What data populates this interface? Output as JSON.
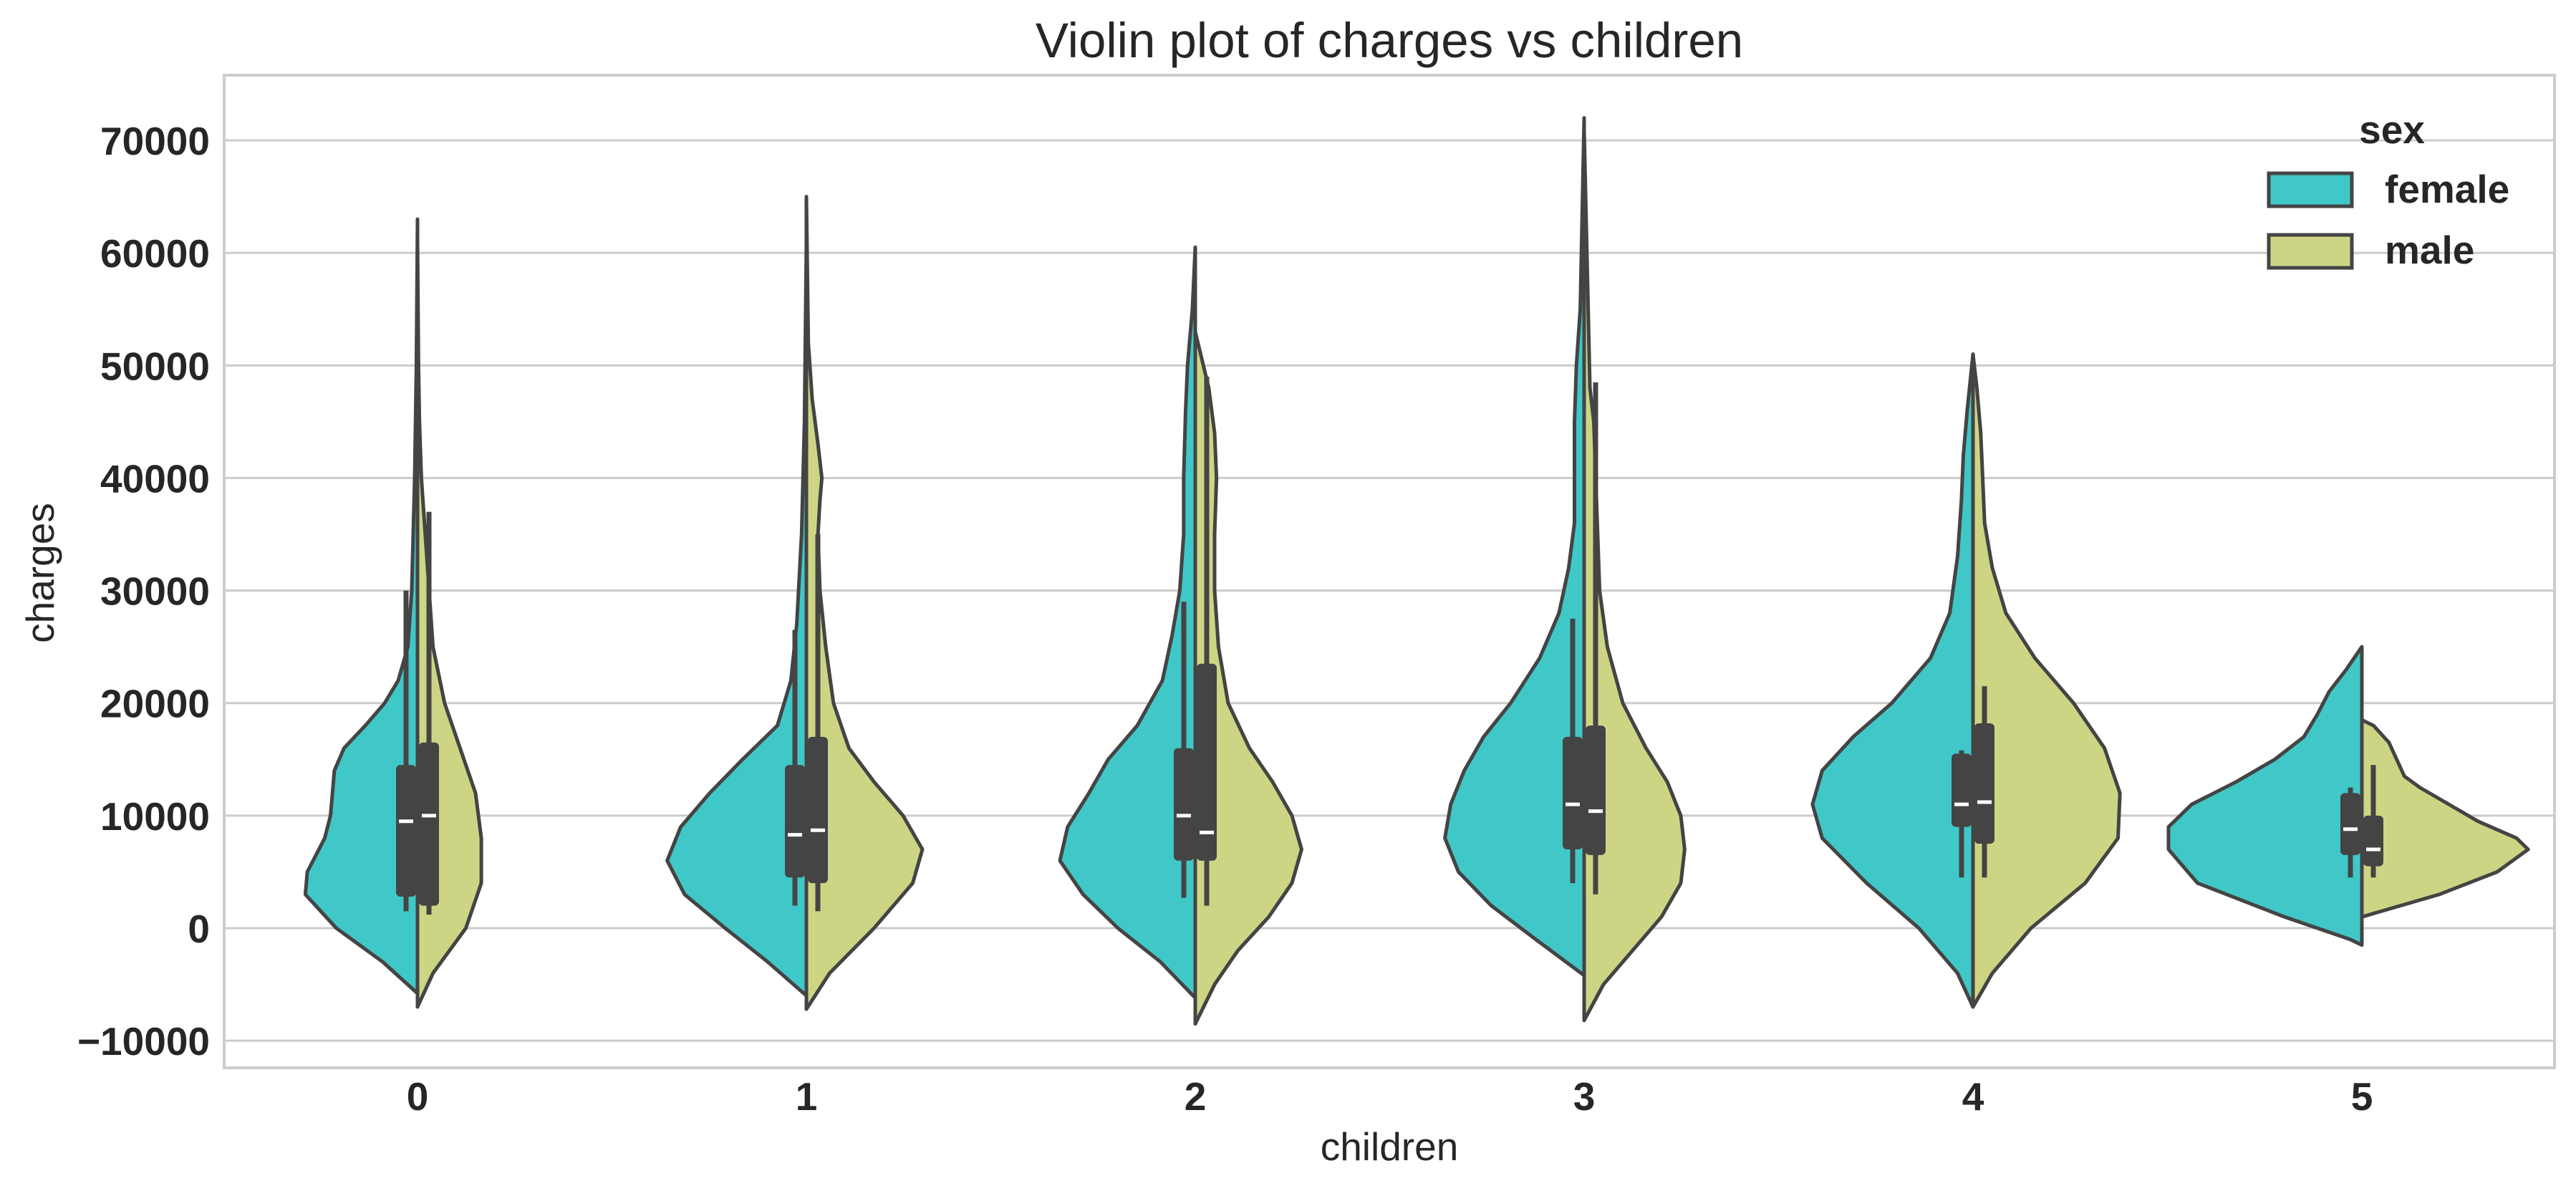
{
  "chart_data": {
    "type": "violin",
    "title": "Violin plot of charges vs children",
    "xlabel": "children",
    "ylabel": "charges",
    "categories": [
      "0",
      "1",
      "2",
      "3",
      "4",
      "5"
    ],
    "ylim": [
      -12500,
      76000
    ],
    "yticks": [
      -10000,
      0,
      10000,
      20000,
      30000,
      40000,
      50000,
      60000,
      70000
    ],
    "ytick_labels": [
      "−10000",
      "0",
      "10000",
      "20000",
      "30000",
      "40000",
      "50000",
      "60000",
      "70000"
    ],
    "grid": "horizontal",
    "split": true,
    "legend": {
      "title": "sex",
      "position": "top-right",
      "entries": [
        {
          "name": "female",
          "color": "#40c8c8"
        },
        {
          "name": "male",
          "color": "#cdd585"
        }
      ]
    },
    "series": [
      {
        "name": "female",
        "color": "#40c8c8",
        "violins": [
          {
            "category": "0",
            "min": -5800,
            "max": 63000,
            "q1": 2800,
            "median": 9500,
            "q3": 14500,
            "whisker_low": 1500,
            "whisker_high": 30000,
            "profile": [
              [
                -5800,
                0.0
              ],
              [
                -3000,
                0.18
              ],
              [
                0,
                0.42
              ],
              [
                3000,
                0.58
              ],
              [
                5000,
                0.57
              ],
              [
                8000,
                0.48
              ],
              [
                10000,
                0.45
              ],
              [
                12000,
                0.44
              ],
              [
                14000,
                0.43
              ],
              [
                16000,
                0.38
              ],
              [
                18000,
                0.27
              ],
              [
                20000,
                0.17
              ],
              [
                22000,
                0.1
              ],
              [
                25000,
                0.05
              ],
              [
                30000,
                0.03
              ],
              [
                40000,
                0.015
              ],
              [
                50000,
                0.006
              ],
              [
                63000,
                0.0
              ]
            ]
          },
          {
            "category": "1",
            "min": -6000,
            "max": 61000,
            "q1": 4500,
            "median": 8300,
            "q3": 14500,
            "whisker_low": 2000,
            "whisker_high": 26500,
            "profile": [
              [
                -6000,
                0.0
              ],
              [
                -3000,
                0.2
              ],
              [
                0,
                0.42
              ],
              [
                3000,
                0.63
              ],
              [
                6000,
                0.72
              ],
              [
                9000,
                0.65
              ],
              [
                12000,
                0.5
              ],
              [
                15000,
                0.33
              ],
              [
                18000,
                0.15
              ],
              [
                22000,
                0.08
              ],
              [
                27000,
                0.05
              ],
              [
                35000,
                0.025
              ],
              [
                45000,
                0.01
              ],
              [
                61000,
                0.0
              ]
            ]
          },
          {
            "category": "2",
            "min": -6200,
            "max": 60500,
            "q1": 6000,
            "median": 10000,
            "q3": 16000,
            "whisker_low": 2700,
            "whisker_high": 29000,
            "profile": [
              [
                -6200,
                0.0
              ],
              [
                -3000,
                0.18
              ],
              [
                0,
                0.4
              ],
              [
                3000,
                0.58
              ],
              [
                6000,
                0.7
              ],
              [
                9000,
                0.66
              ],
              [
                12000,
                0.55
              ],
              [
                15000,
                0.45
              ],
              [
                18000,
                0.3
              ],
              [
                22000,
                0.17
              ],
              [
                26000,
                0.12
              ],
              [
                30000,
                0.08
              ],
              [
                35000,
                0.06
              ],
              [
                40000,
                0.06
              ],
              [
                46000,
                0.05
              ],
              [
                50000,
                0.04
              ],
              [
                55000,
                0.015
              ],
              [
                60500,
                0.0
              ]
            ]
          },
          {
            "category": "3",
            "min": -4200,
            "max": 72000,
            "q1": 7000,
            "median": 11000,
            "q3": 17000,
            "whisker_low": 4000,
            "whisker_high": 27500,
            "profile": [
              [
                -4200,
                0.0
              ],
              [
                -1000,
                0.25
              ],
              [
                2000,
                0.48
              ],
              [
                5000,
                0.65
              ],
              [
                8000,
                0.72
              ],
              [
                11000,
                0.69
              ],
              [
                14000,
                0.62
              ],
              [
                17000,
                0.52
              ],
              [
                20000,
                0.38
              ],
              [
                24000,
                0.23
              ],
              [
                28000,
                0.13
              ],
              [
                32000,
                0.08
              ],
              [
                36000,
                0.05
              ],
              [
                40000,
                0.05
              ],
              [
                45000,
                0.05
              ],
              [
                50000,
                0.04
              ],
              [
                55000,
                0.02
              ],
              [
                72000,
                0.0
              ]
            ]
          },
          {
            "category": "4",
            "min": -7000,
            "max": 51000,
            "q1": 9000,
            "median": 11000,
            "q3": 15500,
            "whisker_low": 4500,
            "whisker_high": 15800,
            "profile": [
              [
                -7000,
                0.0
              ],
              [
                -4000,
                0.08
              ],
              [
                0,
                0.28
              ],
              [
                4000,
                0.55
              ],
              [
                8000,
                0.78
              ],
              [
                11000,
                0.83
              ],
              [
                14000,
                0.78
              ],
              [
                17000,
                0.62
              ],
              [
                20000,
                0.42
              ],
              [
                24000,
                0.22
              ],
              [
                28000,
                0.12
              ],
              [
                33000,
                0.08
              ],
              [
                38000,
                0.06
              ],
              [
                42000,
                0.05
              ],
              [
                46000,
                0.03
              ],
              [
                51000,
                0.0
              ]
            ]
          },
          {
            "category": "5",
            "min": -1500,
            "max": 25000,
            "q1": 6500,
            "median": 8800,
            "q3": 12000,
            "whisker_low": 4500,
            "whisker_high": 12500,
            "profile": [
              [
                -1500,
                0.0
              ],
              [
                -1000,
                0.06
              ],
              [
                1000,
                0.4
              ],
              [
                4000,
                0.85
              ],
              [
                7000,
                1.0
              ],
              [
                9000,
                1.0
              ],
              [
                11000,
                0.88
              ],
              [
                13000,
                0.65
              ],
              [
                15000,
                0.45
              ],
              [
                17000,
                0.3
              ],
              [
                19000,
                0.23
              ],
              [
                21000,
                0.17
              ],
              [
                23000,
                0.08
              ],
              [
                25000,
                0.0
              ]
            ]
          }
        ]
      },
      {
        "name": "male",
        "color": "#cdd585",
        "violins": [
          {
            "category": "0",
            "min": -7000,
            "max": 61000,
            "q1": 2000,
            "median": 10000,
            "q3": 16500,
            "whisker_low": 1200,
            "whisker_high": 37000,
            "profile": [
              [
                -7000,
                0.0
              ],
              [
                -4000,
                0.08
              ],
              [
                0,
                0.25
              ],
              [
                4000,
                0.33
              ],
              [
                8000,
                0.33
              ],
              [
                12000,
                0.3
              ],
              [
                16000,
                0.22
              ],
              [
                20000,
                0.14
              ],
              [
                25000,
                0.08
              ],
              [
                30000,
                0.06
              ],
              [
                35000,
                0.04
              ],
              [
                40000,
                0.02
              ],
              [
                45000,
                0.01
              ],
              [
                50000,
                0.005
              ],
              [
                61000,
                0.0
              ]
            ]
          },
          {
            "category": "1",
            "min": -7200,
            "max": 65000,
            "q1": 4000,
            "median": 8700,
            "q3": 17000,
            "whisker_low": 1500,
            "whisker_high": 35000,
            "profile": [
              [
                -7200,
                0.0
              ],
              [
                -4000,
                0.12
              ],
              [
                0,
                0.35
              ],
              [
                4000,
                0.55
              ],
              [
                7000,
                0.6
              ],
              [
                10000,
                0.5
              ],
              [
                13000,
                0.35
              ],
              [
                16000,
                0.22
              ],
              [
                20000,
                0.14
              ],
              [
                25000,
                0.1
              ],
              [
                30000,
                0.07
              ],
              [
                35000,
                0.06
              ],
              [
                38000,
                0.07
              ],
              [
                40000,
                0.08
              ],
              [
                43000,
                0.06
              ],
              [
                47000,
                0.03
              ],
              [
                52000,
                0.01
              ],
              [
                65000,
                0.0
              ]
            ]
          },
          {
            "category": "2",
            "min": -8500,
            "max": 53000,
            "q1": 6000,
            "median": 8500,
            "q3": 23500,
            "whisker_low": 2000,
            "whisker_high": 49000,
            "profile": [
              [
                -8500,
                0.0
              ],
              [
                -5000,
                0.1
              ],
              [
                -2000,
                0.22
              ],
              [
                1000,
                0.38
              ],
              [
                4000,
                0.5
              ],
              [
                7000,
                0.55
              ],
              [
                10000,
                0.5
              ],
              [
                13000,
                0.4
              ],
              [
                16000,
                0.28
              ],
              [
                20000,
                0.17
              ],
              [
                25000,
                0.12
              ],
              [
                30000,
                0.1
              ],
              [
                35000,
                0.1
              ],
              [
                40000,
                0.11
              ],
              [
                44000,
                0.1
              ],
              [
                48000,
                0.07
              ],
              [
                53000,
                0.0
              ]
            ]
          },
          {
            "category": "3",
            "min": -8200,
            "max": 71000,
            "q1": 6500,
            "median": 10400,
            "q3": 18000,
            "whisker_low": 3000,
            "whisker_high": 48500,
            "profile": [
              [
                -8200,
                0.0
              ],
              [
                -5000,
                0.1
              ],
              [
                -2000,
                0.25
              ],
              [
                1000,
                0.4
              ],
              [
                4000,
                0.5
              ],
              [
                7000,
                0.52
              ],
              [
                10000,
                0.5
              ],
              [
                13000,
                0.43
              ],
              [
                16000,
                0.32
              ],
              [
                20000,
                0.2
              ],
              [
                25000,
                0.12
              ],
              [
                30000,
                0.08
              ],
              [
                35000,
                0.07
              ],
              [
                40000,
                0.06
              ],
              [
                45000,
                0.05
              ],
              [
                48000,
                0.03
              ],
              [
                71000,
                0.0
              ]
            ]
          },
          {
            "category": "4",
            "min": -7000,
            "max": 51000,
            "q1": 7500,
            "median": 11200,
            "q3": 18200,
            "whisker_low": 4500,
            "whisker_high": 21500,
            "profile": [
              [
                -7000,
                0.0
              ],
              [
                -4000,
                0.1
              ],
              [
                0,
                0.3
              ],
              [
                4000,
                0.58
              ],
              [
                8000,
                0.75
              ],
              [
                12000,
                0.76
              ],
              [
                16000,
                0.68
              ],
              [
                20000,
                0.52
              ],
              [
                24000,
                0.32
              ],
              [
                28000,
                0.17
              ],
              [
                32000,
                0.1
              ],
              [
                36000,
                0.06
              ],
              [
                40000,
                0.05
              ],
              [
                44000,
                0.04
              ],
              [
                48000,
                0.02
              ],
              [
                51000,
                0.0
              ]
            ]
          },
          {
            "category": "5",
            "min": 1000,
            "max": 18500,
            "q1": 5500,
            "median": 7000,
            "q3": 10000,
            "whisker_low": 4500,
            "whisker_high": 14500,
            "profile": [
              [
                1000,
                0.0
              ],
              [
                1500,
                0.1
              ],
              [
                3000,
                0.4
              ],
              [
                5000,
                0.7
              ],
              [
                7000,
                0.86
              ],
              [
                8000,
                0.8
              ],
              [
                9500,
                0.6
              ],
              [
                11000,
                0.45
              ],
              [
                12500,
                0.3
              ],
              [
                13500,
                0.22
              ],
              [
                15000,
                0.18
              ],
              [
                16500,
                0.14
              ],
              [
                18000,
                0.06
              ],
              [
                18500,
                0.0
              ]
            ]
          }
        ]
      }
    ]
  }
}
